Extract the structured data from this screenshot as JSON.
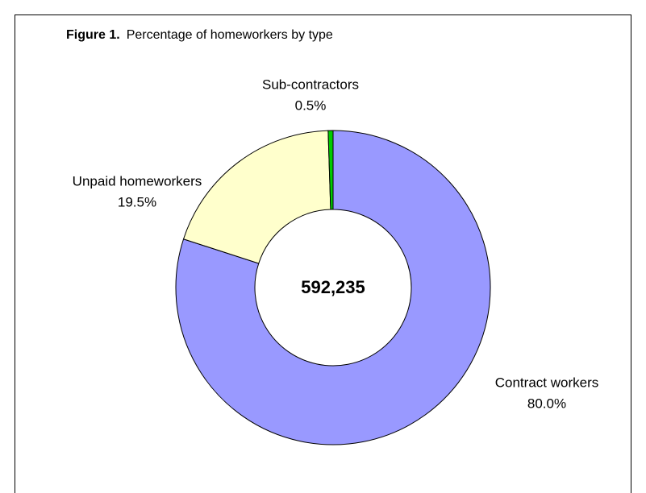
{
  "chart_data": {
    "type": "donut",
    "title_prefix": "Figure 1.",
    "title": "Percentage of homeworkers by type",
    "center_text": "592,235",
    "categories": [
      "Contract workers",
      "Unpaid homeworkers",
      "Sub-contractors"
    ],
    "values": [
      80.0,
      19.5,
      0.5
    ],
    "value_labels": [
      "80.0%",
      "19.5%",
      "0.5%"
    ],
    "colors": [
      "#9999ff",
      "#ffffcc",
      "#00cc00"
    ]
  }
}
